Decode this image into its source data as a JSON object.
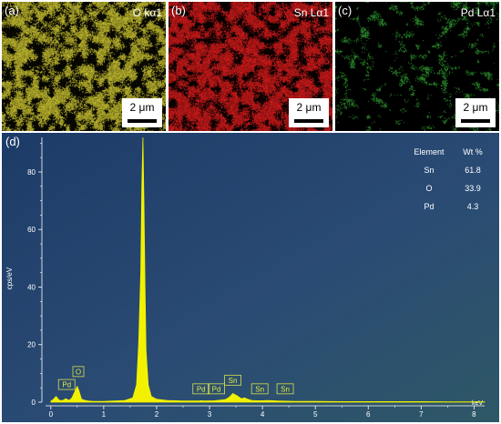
{
  "maps": [
    {
      "letter": "(a)",
      "title": "O kα1",
      "scale": "2 μm",
      "color": "#c9c230"
    },
    {
      "letter": "(b)",
      "title": "Sn Lα1",
      "scale": "2 μm",
      "color": "#d81b1b"
    },
    {
      "letter": "(c)",
      "title": "Pd Lα1",
      "scale": "2 μm",
      "color": "#2f9a2f"
    }
  ],
  "spectrum": {
    "letter": "(d)",
    "table": {
      "headers": [
        "Element",
        "Wt %"
      ],
      "rows": [
        [
          "Sn",
          "61.8"
        ],
        [
          "O",
          "33.9"
        ],
        [
          "Pd",
          "4.3"
        ]
      ]
    },
    "peak_labels": [
      {
        "text": "Pd",
        "x": 0.3,
        "y": 2.5
      },
      {
        "text": "O",
        "x": 0.52,
        "y": 7.0
      },
      {
        "text": "Pd",
        "x": 2.84,
        "y": 1.0
      },
      {
        "text": "Pd",
        "x": 3.13,
        "y": 1.0
      },
      {
        "text": "Sn",
        "x": 3.44,
        "y": 4.0
      },
      {
        "text": "Sn",
        "x": 3.95,
        "y": 1.0
      },
      {
        "text": "Sn",
        "x": 4.43,
        "y": 1.0
      }
    ]
  },
  "chart_data": {
    "type": "area",
    "xlabel": "keV",
    "ylabel": "cps/eV",
    "xlim": [
      -0.1,
      8.2
    ],
    "ylim": [
      0,
      92
    ],
    "xticks": [
      0,
      1,
      2,
      3,
      4,
      5,
      6,
      7,
      8
    ],
    "yticks": [
      0,
      20,
      40,
      60,
      80
    ],
    "series": [
      {
        "x": [
          0.0,
          0.05,
          0.1,
          0.15,
          0.2,
          0.25,
          0.28,
          0.35,
          0.4,
          0.45,
          0.5,
          0.53,
          0.58,
          0.65,
          0.7,
          0.8,
          0.9,
          1.0,
          1.2,
          1.4,
          1.55,
          1.62,
          1.66,
          1.7,
          1.72,
          1.74,
          1.76,
          1.78,
          1.8,
          1.84,
          1.9,
          2.0,
          2.2,
          2.5,
          2.8,
          2.84,
          2.9,
          3.1,
          3.3,
          3.38,
          3.44,
          3.52,
          3.6,
          3.66,
          3.72,
          3.8,
          3.9,
          4.0,
          4.1,
          4.3,
          4.6,
          5.0,
          5.5,
          6.0,
          6.5,
          7.0,
          7.5,
          8.0,
          8.2
        ],
        "y": [
          0.3,
          1.0,
          2.0,
          0.8,
          0.5,
          0.8,
          1.2,
          0.6,
          1.5,
          3.5,
          5.5,
          4.0,
          1.0,
          0.6,
          0.4,
          0.3,
          0.3,
          0.3,
          0.4,
          0.6,
          1.5,
          6.0,
          20.0,
          45.0,
          75.0,
          92.0,
          70.0,
          40.0,
          18.0,
          6.0,
          2.0,
          1.0,
          0.6,
          0.4,
          0.4,
          0.5,
          0.4,
          0.5,
          0.9,
          1.8,
          3.0,
          2.2,
          1.2,
          1.5,
          1.0,
          0.6,
          0.5,
          0.5,
          0.6,
          0.4,
          0.3,
          0.3,
          0.2,
          0.2,
          0.2,
          0.2,
          0.1,
          0.1,
          0.1
        ]
      }
    ],
    "colors": {
      "fill": "#f2f200",
      "background": "#23416b",
      "axis": "#ffffff"
    }
  }
}
